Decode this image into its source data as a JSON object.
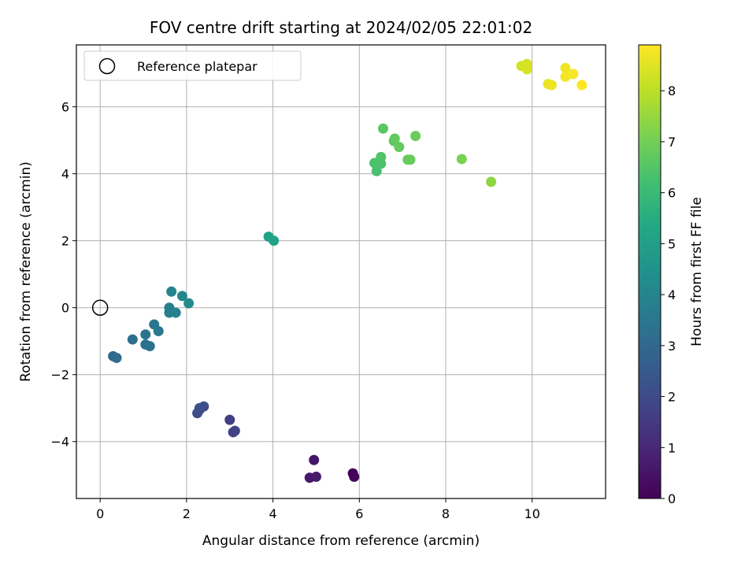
{
  "chart_data": {
    "type": "scatter",
    "title": "FOV centre drift starting at 2024/02/05 22:01:02",
    "xlabel": "Angular distance from reference (arcmin)",
    "ylabel": "Rotation from reference (arcmin)",
    "xlim": [
      -0.55,
      11.7
    ],
    "ylim": [
      -5.7,
      7.85
    ],
    "xticks": [
      0,
      2,
      4,
      6,
      8,
      10
    ],
    "yticks": [
      -4,
      -2,
      0,
      2,
      4,
      6
    ],
    "xtick_labels": [
      "0",
      "2",
      "4",
      "6",
      "8",
      "10"
    ],
    "ytick_labels": [
      "−4",
      "−2",
      "0",
      "2",
      "4",
      "6"
    ],
    "grid": true,
    "legend": {
      "placement": "top-left",
      "entries": [
        "Reference platepar"
      ]
    },
    "reference_point": {
      "x": 0,
      "y": 0,
      "label": "Reference platepar"
    },
    "colorbar": {
      "label": "Hours from first FF file",
      "range": [
        0,
        8.9
      ],
      "ticks": [
        0,
        1,
        2,
        3,
        4,
        5,
        6,
        7,
        8
      ],
      "tick_labels": [
        "0",
        "1",
        "2",
        "3",
        "4",
        "5",
        "6",
        "7",
        "8"
      ],
      "colormap": "viridis"
    },
    "points": [
      {
        "x": 5.85,
        "y": -4.95,
        "c": 0.0
      },
      {
        "x": 5.88,
        "y": -5.05,
        "c": 0.1
      },
      {
        "x": 4.95,
        "y": -4.55,
        "c": 0.5
      },
      {
        "x": 4.85,
        "y": -5.08,
        "c": 0.6
      },
      {
        "x": 5.0,
        "y": -5.05,
        "c": 0.65
      },
      {
        "x": 3.0,
        "y": -3.35,
        "c": 1.6
      },
      {
        "x": 3.08,
        "y": -3.72,
        "c": 1.7
      },
      {
        "x": 3.12,
        "y": -3.68,
        "c": 1.75
      },
      {
        "x": 2.3,
        "y": -3.05,
        "c": 2.0
      },
      {
        "x": 2.25,
        "y": -3.15,
        "c": 2.05
      },
      {
        "x": 2.4,
        "y": -2.95,
        "c": 2.1
      },
      {
        "x": 2.3,
        "y": -3.0,
        "c": 2.15
      },
      {
        "x": 0.3,
        "y": -1.45,
        "c": 3.0
      },
      {
        "x": 0.38,
        "y": -1.5,
        "c": 3.05
      },
      {
        "x": 0.75,
        "y": -0.95,
        "c": 3.2
      },
      {
        "x": 1.05,
        "y": -1.1,
        "c": 3.3
      },
      {
        "x": 1.15,
        "y": -1.15,
        "c": 3.35
      },
      {
        "x": 1.05,
        "y": -0.8,
        "c": 3.4
      },
      {
        "x": 1.25,
        "y": -0.5,
        "c": 3.5
      },
      {
        "x": 1.35,
        "y": -0.7,
        "c": 3.55
      },
      {
        "x": 1.6,
        "y": -0.15,
        "c": 3.8
      },
      {
        "x": 1.6,
        "y": 0.0,
        "c": 3.85
      },
      {
        "x": 1.75,
        "y": -0.15,
        "c": 3.9
      },
      {
        "x": 1.65,
        "y": 0.48,
        "c": 4.0
      },
      {
        "x": 1.9,
        "y": 0.35,
        "c": 4.1
      },
      {
        "x": 2.05,
        "y": 0.13,
        "c": 4.2
      },
      {
        "x": 3.9,
        "y": 2.12,
        "c": 5.1
      },
      {
        "x": 4.02,
        "y": 2.0,
        "c": 5.15
      },
      {
        "x": 6.4,
        "y": 4.08,
        "c": 6.3
      },
      {
        "x": 6.35,
        "y": 4.32,
        "c": 6.35
      },
      {
        "x": 6.5,
        "y": 4.3,
        "c": 6.4
      },
      {
        "x": 6.5,
        "y": 4.5,
        "c": 6.45
      },
      {
        "x": 6.55,
        "y": 5.35,
        "c": 6.6
      },
      {
        "x": 6.8,
        "y": 4.98,
        "c": 6.65
      },
      {
        "x": 6.82,
        "y": 5.05,
        "c": 6.7
      },
      {
        "x": 6.92,
        "y": 4.8,
        "c": 6.75
      },
      {
        "x": 7.12,
        "y": 4.42,
        "c": 6.8
      },
      {
        "x": 7.18,
        "y": 4.42,
        "c": 6.82
      },
      {
        "x": 7.3,
        "y": 5.13,
        "c": 6.85
      },
      {
        "x": 8.37,
        "y": 4.44,
        "c": 7.1
      },
      {
        "x": 9.05,
        "y": 3.76,
        "c": 7.4
      },
      {
        "x": 9.75,
        "y": 7.22,
        "c": 8.3
      },
      {
        "x": 9.88,
        "y": 7.28,
        "c": 8.35
      },
      {
        "x": 9.88,
        "y": 7.12,
        "c": 8.4
      },
      {
        "x": 10.37,
        "y": 6.68,
        "c": 8.6
      },
      {
        "x": 10.45,
        "y": 6.65,
        "c": 8.65
      },
      {
        "x": 10.77,
        "y": 7.16,
        "c": 8.7
      },
      {
        "x": 10.77,
        "y": 6.9,
        "c": 8.75
      },
      {
        "x": 10.95,
        "y": 6.98,
        "c": 8.8
      },
      {
        "x": 11.15,
        "y": 6.65,
        "c": 8.9
      }
    ]
  }
}
